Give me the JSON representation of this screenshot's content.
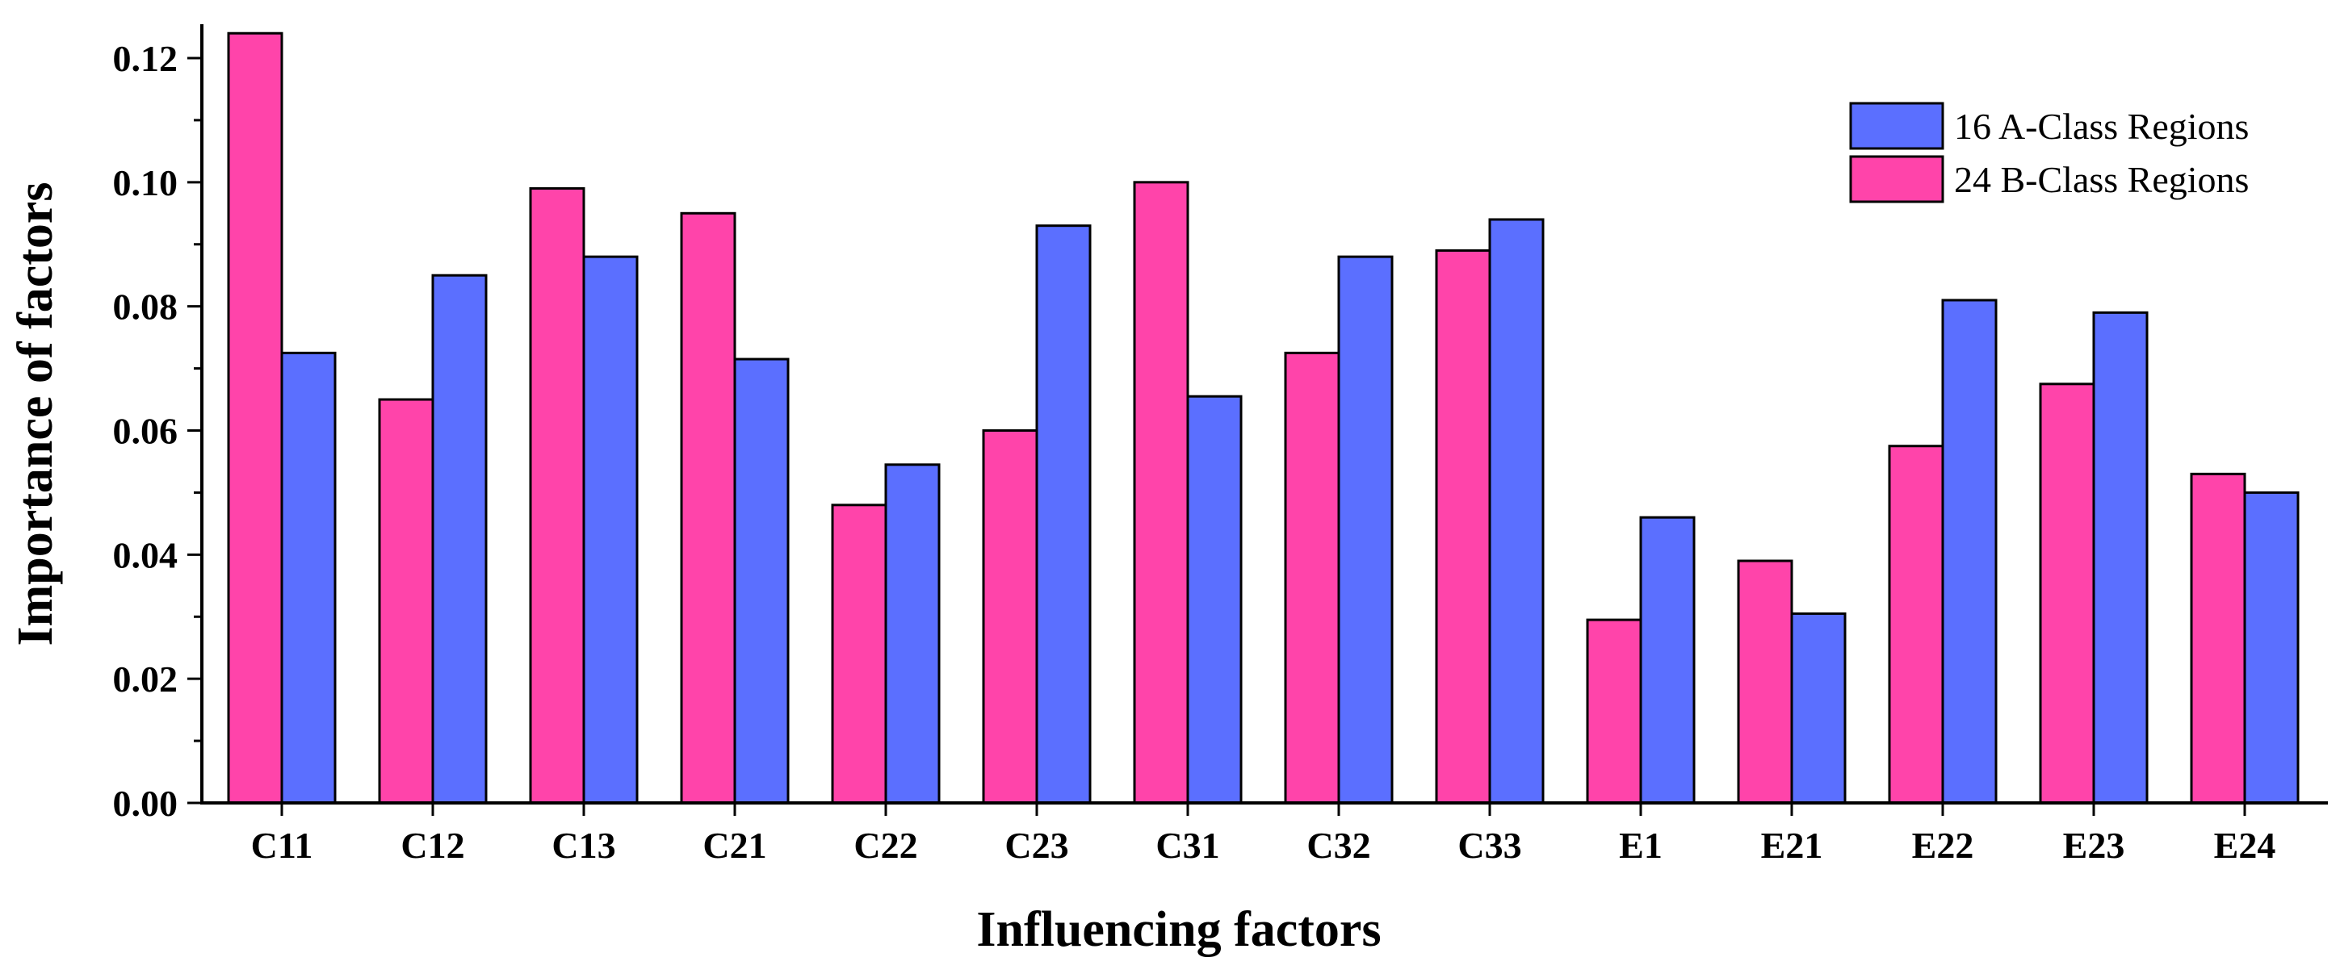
{
  "chart_data": {
    "type": "bar",
    "title": "",
    "xlabel": "Influencing factors",
    "ylabel": "Importance of factors",
    "ylim": [
      0,
      0.13
    ],
    "yticks": [
      "0.00",
      "0.02",
      "0.04",
      "0.06",
      "0.08",
      "0.10",
      "0.12"
    ],
    "grid": false,
    "legend_position": "top-right",
    "categories": [
      "C11",
      "C12",
      "C13",
      "C21",
      "C22",
      "C23",
      "C31",
      "C32",
      "C33",
      "E1",
      "E21",
      "E22",
      "E23",
      "E24"
    ],
    "series": [
      {
        "name": "24 B-Class Regions",
        "color": "#FF44AA",
        "values": [
          0.124,
          0.065,
          0.099,
          0.095,
          0.048,
          0.06,
          0.1,
          0.0725,
          0.089,
          0.0295,
          0.039,
          0.0575,
          0.0675,
          0.053
        ]
      },
      {
        "name": "16 A-Class Regions",
        "color": "#5B6FFF",
        "values": [
          0.0725,
          0.085,
          0.088,
          0.0715,
          0.0545,
          0.093,
          0.0655,
          0.088,
          0.094,
          0.046,
          0.0305,
          0.081,
          0.079,
          0.05
        ]
      }
    ],
    "legend": [
      {
        "label": "16 A-Class Regions",
        "color": "#5B6FFF"
      },
      {
        "label": "24 B-Class Regions",
        "color": "#FF44AA"
      }
    ]
  }
}
